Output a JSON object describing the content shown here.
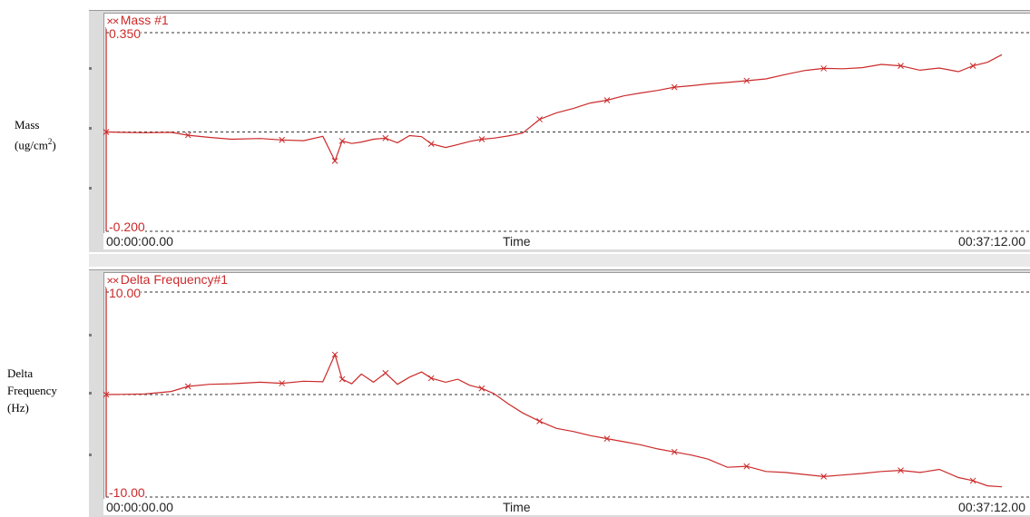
{
  "side_labels": {
    "mass_line1": "Mass",
    "mass_line2": "(ug/cm",
    "mass_sup": "2",
    "mass_close": ")",
    "freq_line1": "Delta",
    "freq_line2": "Frequency",
    "freq_line3": "(Hz)"
  },
  "colors": {
    "series": "#cc2a2a",
    "grid": "#333333",
    "panel": "#dcdcdc"
  },
  "chart_data": [
    {
      "type": "line",
      "title": "Mass #1",
      "xlabel": "Time",
      "x_start_label": "00:00:00.00",
      "x_end_label": "00:37:12.00",
      "ylim": [
        -0.2,
        0.35
      ],
      "ymax_label": "0.350",
      "ymin_label": "-0.200",
      "xlim_minutes": [
        0,
        37.2
      ],
      "gridlines_y": [
        0.35,
        0.075,
        -0.2
      ],
      "grid": "dashed horizontal",
      "series": [
        {
          "x": [
            0,
            0.6,
            1.6,
            2.7,
            3.4,
            4.3,
            5.2,
            6.4,
            7.3,
            8.2,
            9.0,
            9.5,
            9.8,
            10.2,
            10.6,
            11.1,
            11.6,
            12.1,
            12.6,
            13.1,
            13.5,
            14.1,
            14.6,
            15.1,
            15.6,
            16.1,
            16.7,
            17.3,
            18.0,
            18.7,
            19.4,
            20.1,
            20.8,
            21.5,
            22.2,
            22.9,
            23.6,
            24.3,
            25.0,
            25.8,
            26.6,
            27.4,
            28.2,
            29.0,
            29.8,
            30.6,
            31.4,
            32.2,
            33.0,
            33.8,
            34.6,
            35.4,
            36.0,
            36.6,
            37.2
          ],
          "y": [
            0.075,
            0.074,
            0.073,
            0.074,
            0.066,
            0.06,
            0.055,
            0.057,
            0.053,
            0.051,
            0.063,
            -0.005,
            0.05,
            0.043,
            0.047,
            0.055,
            0.058,
            0.045,
            0.065,
            0.062,
            0.042,
            0.032,
            0.04,
            0.049,
            0.055,
            0.058,
            0.064,
            0.072,
            0.11,
            0.128,
            0.14,
            0.155,
            0.163,
            0.175,
            0.183,
            0.19,
            0.199,
            0.203,
            0.208,
            0.212,
            0.217,
            0.222,
            0.234,
            0.245,
            0.251,
            0.25,
            0.253,
            0.262,
            0.258,
            0.246,
            0.252,
            0.242,
            0.258,
            0.268,
            0.289
          ]
        }
      ]
    },
    {
      "type": "line",
      "title": "Delta Frequency#1",
      "xlabel": "Time",
      "x_start_label": "00:00:00.00",
      "x_end_label": "00:37:12.00",
      "ylim": [
        -10,
        10
      ],
      "ymax_label": "10.00",
      "ymin_label": "-10.00",
      "xlim_minutes": [
        0,
        37.2
      ],
      "gridlines_y": [
        10,
        0,
        -10
      ],
      "grid": "dashed horizontal",
      "series": [
        {
          "x": [
            0,
            0.6,
            1.6,
            2.7,
            3.4,
            4.3,
            5.2,
            6.4,
            7.3,
            8.2,
            9.0,
            9.5,
            9.8,
            10.2,
            10.6,
            11.1,
            11.6,
            12.1,
            12.6,
            13.1,
            13.5,
            14.1,
            14.6,
            15.1,
            15.6,
            16.1,
            16.7,
            17.3,
            18.0,
            18.7,
            19.4,
            20.1,
            20.8,
            21.5,
            22.2,
            22.9,
            23.6,
            24.3,
            25.0,
            25.8,
            26.6,
            27.4,
            28.2,
            29.0,
            29.8,
            30.6,
            31.4,
            32.2,
            33.0,
            33.8,
            34.6,
            35.4,
            36.0,
            36.6,
            37.2
          ],
          "y": [
            0,
            0.02,
            0.05,
            0.3,
            0.8,
            1.0,
            1.05,
            1.2,
            1.1,
            1.3,
            1.25,
            3.9,
            1.5,
            1.05,
            2.0,
            1.2,
            2.1,
            1.0,
            1.7,
            2.2,
            1.6,
            1.2,
            1.5,
            0.9,
            0.6,
            0.1,
            -0.9,
            -1.8,
            -2.6,
            -3.3,
            -3.6,
            -4.0,
            -4.3,
            -4.6,
            -4.9,
            -5.3,
            -5.6,
            -5.9,
            -6.3,
            -7.1,
            -7.0,
            -7.5,
            -7.6,
            -7.8,
            -8.0,
            -7.85,
            -7.7,
            -7.5,
            -7.4,
            -7.6,
            -7.3,
            -8.1,
            -8.4,
            -8.9,
            -9.0
          ]
        }
      ]
    }
  ]
}
